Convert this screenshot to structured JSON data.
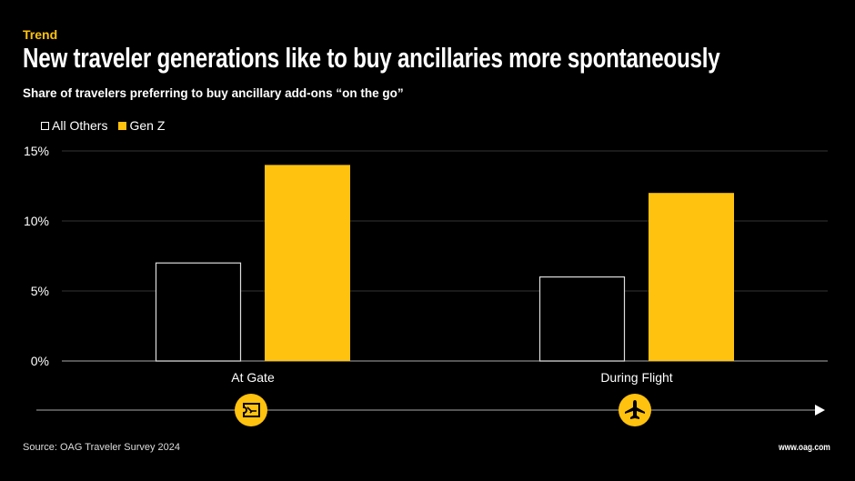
{
  "kicker": "Trend",
  "title": "New traveler generations like to buy ancillaries more spontaneously",
  "subtitle": "Share of travelers preferring to buy ancillary add-ons “on the go”",
  "source": "Source: OAG Traveler Survey 2024",
  "url": "www.oag.com",
  "colors": {
    "genz": "#FFC20E",
    "others": "#FFFFFF",
    "background": "#000000"
  },
  "chart_data": {
    "type": "bar",
    "title": "New traveler generations like to buy ancillaries more spontaneously",
    "categories": [
      "At Gate",
      "During Flight"
    ],
    "category_icons": [
      "boarding-pass-icon",
      "airplane-icon"
    ],
    "series": [
      {
        "name": "All Others",
        "values": [
          7,
          6
        ],
        "style": "outline"
      },
      {
        "name": "Gen Z",
        "values": [
          14,
          12
        ],
        "style": "filled"
      }
    ],
    "ylim": [
      0,
      15
    ],
    "yticks": [
      0,
      5,
      10,
      15
    ],
    "ytick_labels": [
      "0%",
      "5%",
      "10%",
      "15%"
    ],
    "xlabel": "",
    "ylabel": "",
    "grid": true,
    "legend": "top-left"
  }
}
